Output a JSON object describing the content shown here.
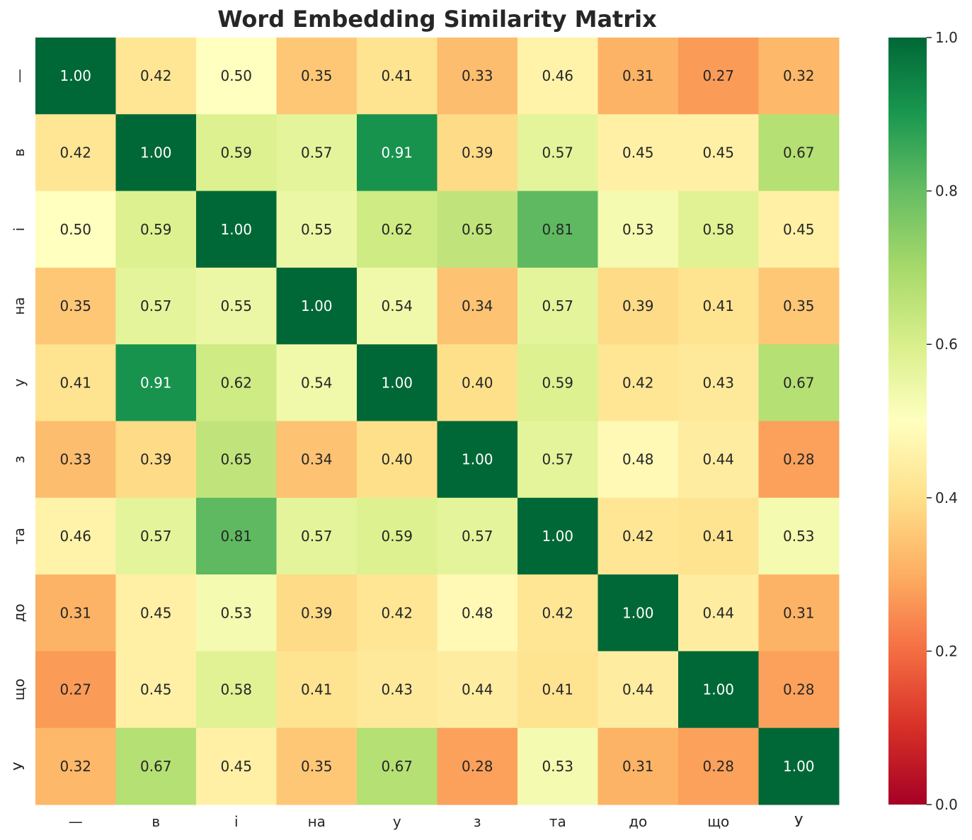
{
  "chart_data": {
    "type": "heatmap",
    "title": "Word Embedding Similarity Matrix",
    "x_labels": [
      "—",
      "в",
      "і",
      "на",
      "у",
      "з",
      "та",
      "до",
      "що",
      "У"
    ],
    "y_labels": [
      "—",
      "в",
      "і",
      "на",
      "у",
      "з",
      "та",
      "до",
      "що",
      "У"
    ],
    "values": [
      [
        1.0,
        0.42,
        0.5,
        0.35,
        0.41,
        0.33,
        0.46,
        0.31,
        0.27,
        0.32
      ],
      [
        0.42,
        1.0,
        0.59,
        0.57,
        0.91,
        0.39,
        0.57,
        0.45,
        0.45,
        0.67
      ],
      [
        0.5,
        0.59,
        1.0,
        0.55,
        0.62,
        0.65,
        0.81,
        0.53,
        0.58,
        0.45
      ],
      [
        0.35,
        0.57,
        0.55,
        1.0,
        0.54,
        0.34,
        0.57,
        0.39,
        0.41,
        0.35
      ],
      [
        0.41,
        0.91,
        0.62,
        0.54,
        1.0,
        0.4,
        0.59,
        0.42,
        0.43,
        0.67
      ],
      [
        0.33,
        0.39,
        0.65,
        0.34,
        0.4,
        1.0,
        0.57,
        0.48,
        0.44,
        0.28
      ],
      [
        0.46,
        0.57,
        0.81,
        0.57,
        0.59,
        0.57,
        1.0,
        0.42,
        0.41,
        0.53
      ],
      [
        0.31,
        0.45,
        0.53,
        0.39,
        0.42,
        0.48,
        0.42,
        1.0,
        0.44,
        0.31
      ],
      [
        0.27,
        0.45,
        0.58,
        0.41,
        0.43,
        0.44,
        0.41,
        0.44,
        1.0,
        0.28
      ],
      [
        0.32,
        0.67,
        0.45,
        0.35,
        0.67,
        0.28,
        0.53,
        0.31,
        0.28,
        1.0
      ]
    ],
    "value_format": "0.00",
    "colormap": "RdYlGn",
    "colormap_stops": [
      "#a50026",
      "#d73027",
      "#f46d43",
      "#fdae61",
      "#fee08b",
      "#ffffbf",
      "#d9ef8b",
      "#a6d96a",
      "#66bd63",
      "#1a9850",
      "#006837"
    ],
    "vmin": 0.0,
    "vmax": 1.0,
    "colorbar_ticks": [
      "0.0",
      "0.2",
      "0.4",
      "0.6",
      "0.8",
      "1.0"
    ],
    "grid": false,
    "legend": "right colorbar"
  }
}
